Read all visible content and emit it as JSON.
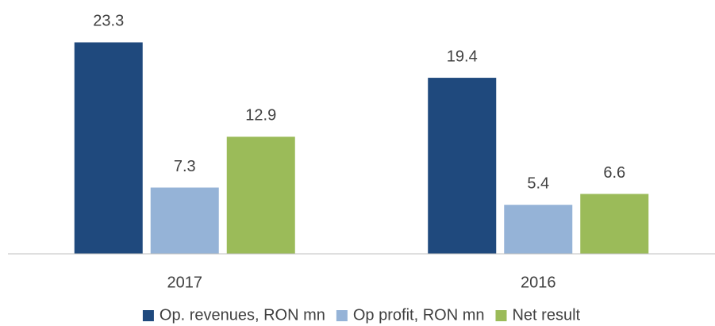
{
  "chart_data": {
    "type": "bar",
    "categories": [
      "2017",
      "2016"
    ],
    "series": [
      {
        "name": "Op. revenues, RON mn",
        "color": "#1f497d",
        "values": [
          23.3,
          19.4
        ]
      },
      {
        "name": "Op profit, RON mn",
        "color": "#95b3d7",
        "values": [
          7.3,
          5.4
        ]
      },
      {
        "name": "Net result",
        "color": "#9bbb59",
        "values": [
          12.9,
          6.6
        ]
      }
    ],
    "ylim": [
      0,
      25
    ],
    "legend": "bottom"
  }
}
